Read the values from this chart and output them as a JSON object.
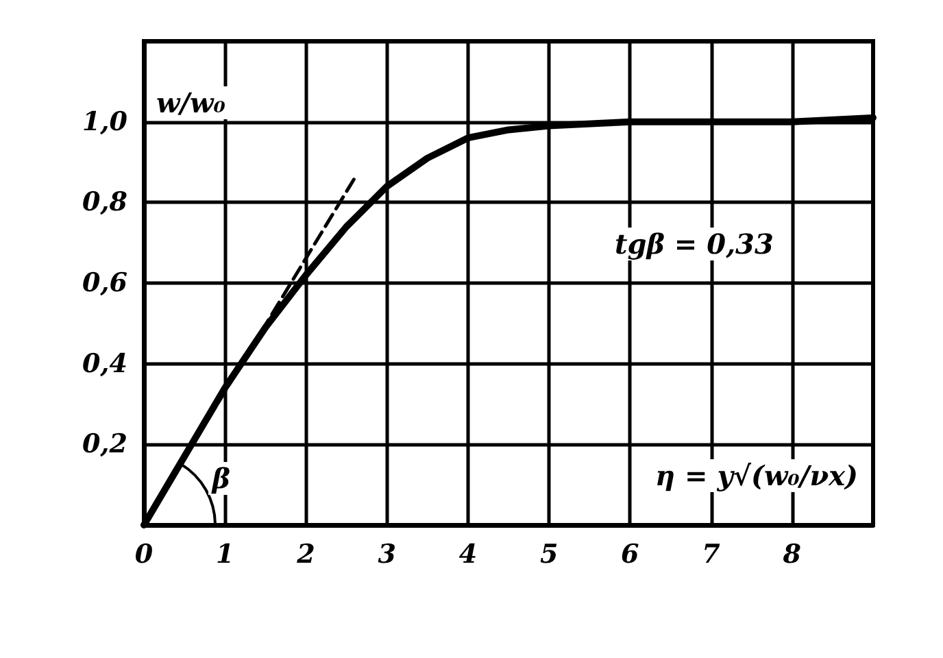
{
  "chart_data": {
    "type": "line",
    "xlabel": "η = y√(w₀/νx)",
    "ylabel": "w/w₀",
    "xlim": [
      0,
      9
    ],
    "ylim": [
      0,
      1.2
    ],
    "xticks": [
      0,
      1,
      2,
      3,
      4,
      5,
      6,
      7,
      8
    ],
    "yticks": [
      {
        "value": 0.2,
        "label": "0,2"
      },
      {
        "value": 0.4,
        "label": "0,4"
      },
      {
        "value": 0.6,
        "label": "0,6"
      },
      {
        "value": 0.8,
        "label": "0,8"
      },
      {
        "value": 1.0,
        "label": "1,0"
      },
      {
        "value": 1.2,
        "label": null
      }
    ],
    "grid": true,
    "marker": "none",
    "series": [
      {
        "color": "#000000",
        "x": [
          0,
          0.5,
          1,
          1.5,
          2,
          2.5,
          3,
          3.5,
          4,
          4.5,
          5,
          6,
          7,
          8,
          9
        ],
        "values": [
          0,
          0.17,
          0.34,
          0.49,
          0.62,
          0.74,
          0.84,
          0.91,
          0.96,
          0.98,
          0.99,
          1.0,
          1.0,
          1.0,
          1.01
        ],
        "line_style": "solid"
      },
      {
        "color": "#000000",
        "x": [
          0,
          2.6
        ],
        "values": [
          0,
          0.86
        ],
        "line_style": "dashed"
      }
    ],
    "annotations": [
      "tgβ = 0,33",
      "β"
    ]
  }
}
